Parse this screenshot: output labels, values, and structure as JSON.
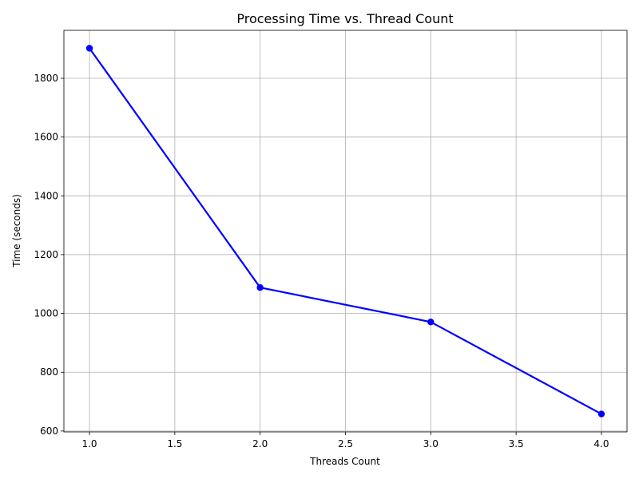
{
  "chart_data": {
    "type": "line",
    "title": "Processing Time vs. Thread Count",
    "xlabel": "Threads Count",
    "ylabel": "Time (seconds)",
    "xlim": [
      0.85,
      4.15
    ],
    "ylim": [
      597,
      1963
    ],
    "x_ticks": [
      1.0,
      1.5,
      2.0,
      2.5,
      3.0,
      3.5,
      4.0
    ],
    "x_tick_labels": [
      "1.0",
      "1.5",
      "2.0",
      "2.5",
      "3.0",
      "3.5",
      "4.0"
    ],
    "y_ticks": [
      600,
      800,
      1000,
      1200,
      1400,
      1600,
      1800
    ],
    "y_tick_labels": [
      "600",
      "800",
      "1000",
      "1200",
      "1400",
      "1600",
      "1800"
    ],
    "grid": true,
    "series": [
      {
        "color": "#0000ff",
        "marker": "circle",
        "points": [
          {
            "x": 1,
            "y": 1902
          },
          {
            "x": 2,
            "y": 1088
          },
          {
            "x": 3,
            "y": 971
          },
          {
            "x": 4,
            "y": 658
          }
        ]
      }
    ]
  }
}
